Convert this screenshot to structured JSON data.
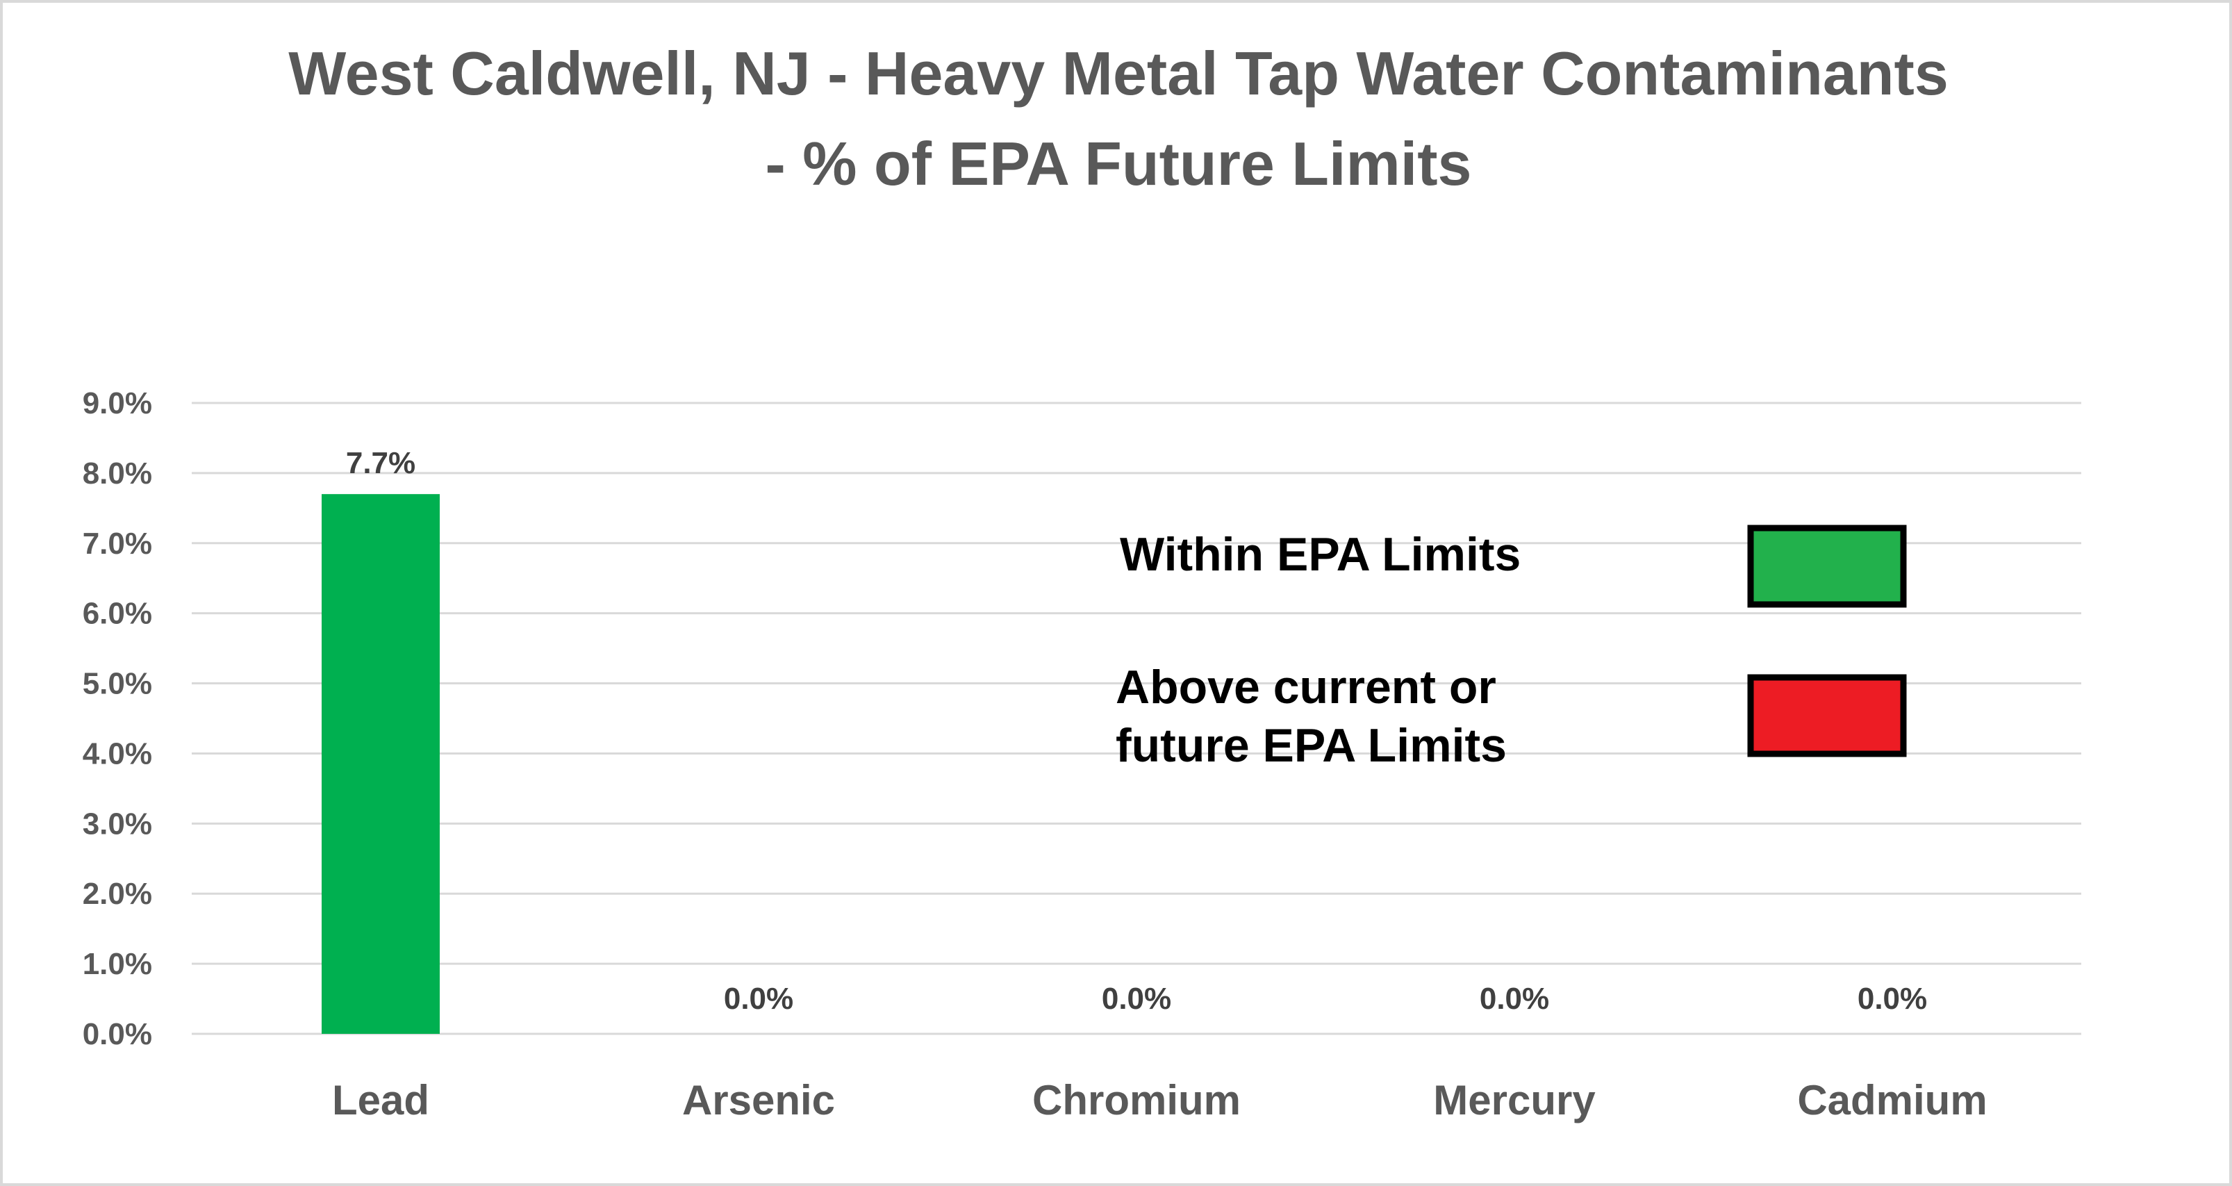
{
  "chart_data": {
    "type": "bar",
    "title": [
      "West Caldwell, NJ - Heavy Metal Tap Water Contaminants",
      "- % of EPA Future Limits"
    ],
    "xlabel": "",
    "ylabel": "",
    "categories": [
      "Lead",
      "Arsenic",
      "Chromium",
      "Mercury",
      "Cadmium"
    ],
    "values": [
      7.7,
      0.0,
      0.0,
      0.0,
      0.0
    ],
    "data_labels": [
      "7.7%",
      "0.0%",
      "0.0%",
      "0.0%",
      "0.0%"
    ],
    "ylim": [
      0,
      9
    ],
    "yticks": [
      "0.0%",
      "1.0%",
      "2.0%",
      "3.0%",
      "4.0%",
      "5.0%",
      "6.0%",
      "7.0%",
      "8.0%",
      "9.0%"
    ],
    "grid": true,
    "bar_color": "#00B050",
    "legend": {
      "placement": "right",
      "items": [
        {
          "lines": [
            "Within  EPA Limits"
          ],
          "color": "#22B14C"
        },
        {
          "lines": [
            "Above current or",
            "future  EPA Limits"
          ],
          "color": "#ED1C24"
        }
      ]
    }
  }
}
